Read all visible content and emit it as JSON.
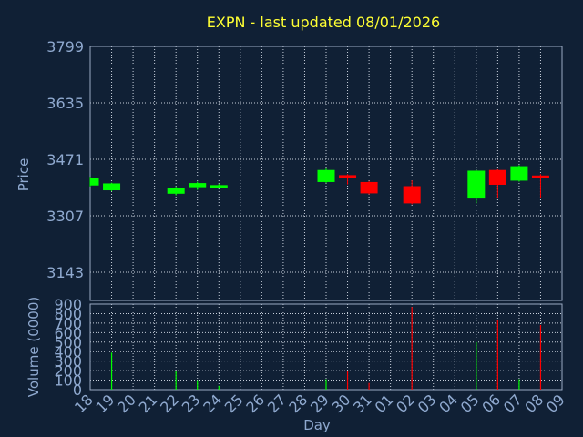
{
  "chart_data": [
    {
      "type": "candlestick",
      "title": "EXPN - last updated 08/01/2026",
      "ylabel": "Price",
      "ylim": [
        3061,
        3799
      ],
      "yticks": [
        "3799",
        "3635",
        "3471",
        "3307",
        "3143"
      ],
      "x": [
        "18",
        "19",
        "20",
        "21",
        "22",
        "23",
        "24",
        "25",
        "26",
        "27",
        "28",
        "29",
        "30",
        "31",
        "01",
        "02",
        "03",
        "04",
        "05",
        "06",
        "07",
        "08",
        "09"
      ],
      "candles": [
        {
          "day": "18",
          "open": 3395,
          "close": 3418,
          "high": 3420,
          "low": 3392
        },
        {
          "day": "19",
          "open": 3381,
          "close": 3401,
          "high": 3403,
          "low": 3378
        },
        {
          "day": "22",
          "open": 3371,
          "close": 3388,
          "high": 3392,
          "low": 3366
        },
        {
          "day": "23",
          "open": 3390,
          "close": 3402,
          "high": 3406,
          "low": 3382
        },
        {
          "day": "24",
          "open": 3389,
          "close": 3396,
          "high": 3400,
          "low": 3387
        },
        {
          "day": "29",
          "open": 3405,
          "close": 3440,
          "high": 3446,
          "low": 3402
        },
        {
          "day": "30",
          "open": 3425,
          "close": 3416,
          "high": 3428,
          "low": 3398
        },
        {
          "day": "31",
          "open": 3405,
          "close": 3372,
          "high": 3408,
          "low": 3369
        },
        {
          "day": "02",
          "open": 3393,
          "close": 3343,
          "high": 3410,
          "low": 3340
        },
        {
          "day": "05",
          "open": 3357,
          "close": 3438,
          "high": 3440,
          "low": 3343
        },
        {
          "day": "06",
          "open": 3440,
          "close": 3397,
          "high": 3442,
          "low": 3357
        },
        {
          "day": "07",
          "open": 3409,
          "close": 3451,
          "high": 3454,
          "low": 3406
        },
        {
          "day": "08",
          "open": 3424,
          "close": 3416,
          "high": 3428,
          "low": 3358
        }
      ],
      "up_color": "#00ff00",
      "down_color": "#ff0000",
      "grid": true
    },
    {
      "type": "bar",
      "ylabel": "Volume (0000)",
      "xlabel": "Day",
      "ylim": [
        0,
        900
      ],
      "yticks": [
        "900",
        "800",
        "700",
        "600",
        "500",
        "400",
        "300",
        "200",
        "100",
        "0"
      ],
      "x": [
        "18",
        "19",
        "20",
        "21",
        "22",
        "23",
        "24",
        "25",
        "26",
        "27",
        "28",
        "29",
        "30",
        "31",
        "01",
        "02",
        "03",
        "04",
        "05",
        "06",
        "07",
        "08",
        "09"
      ],
      "volumes": [
        {
          "day": "19",
          "value": 390,
          "color": "#00ff00"
        },
        {
          "day": "22",
          "value": 200,
          "color": "#00ff00"
        },
        {
          "day": "23",
          "value": 100,
          "color": "#00ff00"
        },
        {
          "day": "24",
          "value": 40,
          "color": "#00ff00"
        },
        {
          "day": "29",
          "value": 110,
          "color": "#00ff00"
        },
        {
          "day": "30",
          "value": 200,
          "color": "#ff0000"
        },
        {
          "day": "31",
          "value": 70,
          "color": "#ff0000"
        },
        {
          "day": "02",
          "value": 870,
          "color": "#ff0000"
        },
        {
          "day": "05",
          "value": 500,
          "color": "#00ff00"
        },
        {
          "day": "06",
          "value": 730,
          "color": "#ff0000"
        },
        {
          "day": "07",
          "value": 110,
          "color": "#00ff00"
        },
        {
          "day": "08",
          "value": 680,
          "color": "#ff0000"
        }
      ],
      "grid": true
    }
  ]
}
